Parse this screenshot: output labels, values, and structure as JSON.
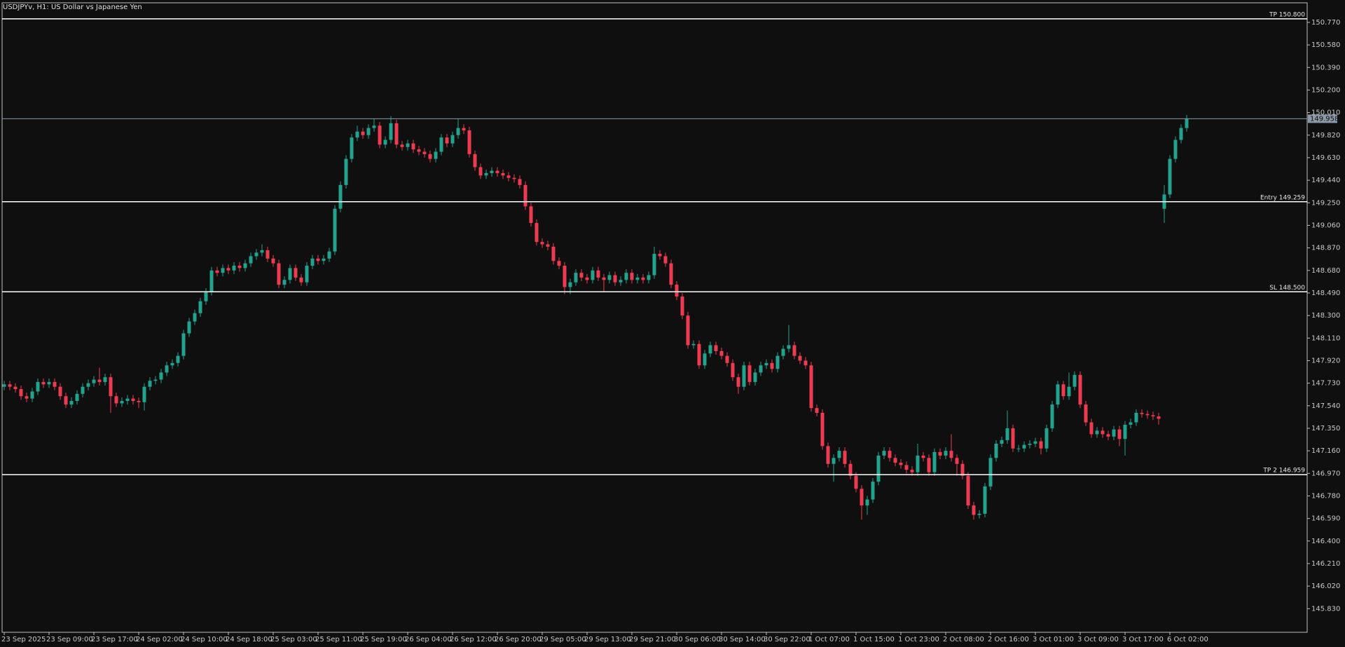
{
  "chart_data": {
    "type": "candlestick",
    "title": "USDJPYv, H1:  US Dollar vs Japanese Yen",
    "up_color": "#22a38e",
    "down_color": "#ee3b52",
    "level_color": "#ffffff",
    "bid_color": "#8c99a8",
    "ylim": [
      145.631,
      150.935
    ],
    "yticks": [
      {
        "value": 150.77,
        "label": "150.770"
      },
      {
        "value": 150.58,
        "label": "150.580"
      },
      {
        "value": 150.39,
        "label": "150.390"
      },
      {
        "value": 150.2,
        "label": "150.200"
      },
      {
        "value": 150.01,
        "label": "150.010"
      },
      {
        "value": 149.82,
        "label": "149.820"
      },
      {
        "value": 149.63,
        "label": "149.630"
      },
      {
        "value": 149.44,
        "label": "149.440"
      },
      {
        "value": 149.25,
        "label": "149.250"
      },
      {
        "value": 149.06,
        "label": "149.060"
      },
      {
        "value": 148.87,
        "label": "148.870"
      },
      {
        "value": 148.68,
        "label": "148.680"
      },
      {
        "value": 148.49,
        "label": "148.490"
      },
      {
        "value": 148.3,
        "label": "148.300"
      },
      {
        "value": 148.11,
        "label": "148.110"
      },
      {
        "value": 147.92,
        "label": "147.920"
      },
      {
        "value": 147.73,
        "label": "147.730"
      },
      {
        "value": 147.54,
        "label": "147.540"
      },
      {
        "value": 147.35,
        "label": "147.350"
      },
      {
        "value": 147.16,
        "label": "147.160"
      },
      {
        "value": 146.97,
        "label": "146.970"
      },
      {
        "value": 146.78,
        "label": "146.780"
      },
      {
        "value": 146.59,
        "label": "146.590"
      },
      {
        "value": 146.4,
        "label": "146.400"
      },
      {
        "value": 146.21,
        "label": "146.210"
      },
      {
        "value": 146.02,
        "label": "146.020"
      },
      {
        "value": 145.83,
        "label": "145.830"
      }
    ],
    "levels": [
      {
        "label": "TP 150.800",
        "value": 150.8
      },
      {
        "label": "Entry 149.259",
        "value": 149.259
      },
      {
        "label": "SL 148.500",
        "value": 148.5
      },
      {
        "label": "TP 2 146.959",
        "value": 146.959
      }
    ],
    "bid": 149.958,
    "categories": [
      "23 Sep 2025",
      null,
      null,
      null,
      null,
      null,
      null,
      null,
      "23 Sep 09:00",
      null,
      null,
      null,
      null,
      null,
      null,
      null,
      "23 Sep 17:00",
      null,
      null,
      null,
      null,
      null,
      null,
      null,
      "24 Sep 02:00",
      null,
      null,
      null,
      null,
      null,
      null,
      null,
      "24 Sep 10:00",
      null,
      null,
      null,
      null,
      null,
      null,
      null,
      "24 Sep 18:00",
      null,
      null,
      null,
      null,
      null,
      null,
      null,
      "25 Sep 03:00",
      null,
      null,
      null,
      null,
      null,
      null,
      null,
      "25 Sep 11:00",
      null,
      null,
      null,
      null,
      null,
      null,
      null,
      "25 Sep 19:00",
      null,
      null,
      null,
      null,
      null,
      null,
      null,
      "26 Sep 04:00",
      null,
      null,
      null,
      null,
      null,
      null,
      null,
      "26 Sep 12:00",
      null,
      null,
      null,
      null,
      null,
      null,
      null,
      "26 Sep 20:00",
      null,
      null,
      null,
      null,
      null,
      null,
      null,
      "29 Sep 05:00",
      null,
      null,
      null,
      null,
      null,
      null,
      null,
      "29 Sep 13:00",
      null,
      null,
      null,
      null,
      null,
      null,
      null,
      "29 Sep 21:00",
      null,
      null,
      null,
      null,
      null,
      null,
      null,
      "30 Sep 06:00",
      null,
      null,
      null,
      null,
      null,
      null,
      null,
      "30 Sep 14:00",
      null,
      null,
      null,
      null,
      null,
      null,
      null,
      "30 Sep 22:00",
      null,
      null,
      null,
      null,
      null,
      null,
      null,
      "1 Oct 07:00",
      null,
      null,
      null,
      null,
      null,
      null,
      null,
      "1 Oct 15:00",
      null,
      null,
      null,
      null,
      null,
      null,
      null,
      "1 Oct 23:00",
      null,
      null,
      null,
      null,
      null,
      null,
      null,
      "2 Oct 08:00",
      null,
      null,
      null,
      null,
      null,
      null,
      null,
      "2 Oct 16:00",
      null,
      null,
      null,
      null,
      null,
      null,
      null,
      "3 Oct 01:00",
      null,
      null,
      null,
      null,
      null,
      null,
      null,
      "3 Oct 09:00",
      null,
      null,
      null,
      null,
      null,
      null,
      null,
      "3 Oct 17:00",
      null,
      null,
      null,
      null,
      null,
      null,
      null,
      "6 Oct 02:00",
      null,
      null,
      null
    ],
    "open": [
      147.7,
      147.72,
      147.7,
      147.68,
      147.62,
      147.6,
      147.66,
      147.74,
      147.72,
      147.74,
      147.7,
      147.62,
      147.55,
      147.58,
      147.64,
      147.7,
      147.73,
      147.76,
      147.74,
      147.78,
      147.62,
      147.56,
      147.58,
      147.6,
      147.58,
      147.57,
      147.7,
      147.75,
      147.76,
      147.82,
      147.88,
      147.9,
      147.96,
      148.15,
      148.25,
      148.32,
      148.42,
      148.5,
      148.68,
      148.66,
      148.7,
      148.68,
      148.72,
      148.7,
      148.74,
      148.8,
      148.83,
      148.85,
      148.78,
      148.74,
      148.56,
      148.6,
      148.7,
      148.62,
      148.58,
      148.72,
      148.78,
      148.76,
      148.78,
      148.84,
      149.2,
      149.4,
      149.62,
      149.8,
      149.85,
      149.82,
      149.88,
      149.9,
      149.74,
      149.78,
      149.92,
      149.74,
      149.72,
      149.75,
      149.7,
      149.68,
      149.66,
      149.62,
      149.68,
      149.8,
      149.75,
      149.82,
      149.88,
      149.86,
      149.66,
      149.55,
      149.48,
      149.5,
      149.52,
      149.5,
      149.48,
      149.46,
      149.45,
      149.4,
      149.22,
      149.08,
      148.92,
      148.9,
      148.88,
      148.76,
      148.72,
      148.54,
      148.58,
      148.66,
      148.62,
      148.6,
      148.68,
      148.62,
      148.6,
      148.64,
      148.58,
      148.6,
      148.66,
      148.6,
      148.62,
      148.6,
      148.64,
      148.82,
      148.8,
      148.74,
      148.56,
      148.46,
      148.3,
      148.05,
      148.06,
      147.88,
      147.98,
      148.05,
      148.0,
      147.96,
      147.9,
      147.78,
      147.7,
      147.88,
      147.74,
      147.82,
      147.88,
      147.9,
      147.85,
      147.96,
      148.02,
      148.05,
      147.96,
      147.92,
      147.88,
      147.52,
      147.48,
      147.2,
      147.05,
      147.1,
      147.16,
      147.05,
      146.95,
      146.84,
      146.7,
      146.75,
      146.9,
      147.12,
      147.16,
      147.1,
      147.06,
      147.04,
      147.0,
      146.98,
      147.12,
      147.1,
      146.98,
      147.15,
      147.12,
      147.16,
      147.1,
      147.05,
      146.95,
      146.7,
      146.62,
      146.63,
      146.86,
      147.1,
      147.22,
      147.25,
      147.35,
      147.18,
      147.18,
      147.21,
      147.22,
      147.24,
      147.18,
      147.35,
      147.55,
      147.72,
      147.62,
      147.7,
      147.8,
      147.55,
      147.4,
      147.3,
      147.33,
      147.3,
      147.28,
      147.34,
      147.26,
      147.38,
      147.4,
      147.48,
      147.47,
      147.46,
      147.45,
      149.2,
      149.32,
      149.62,
      149.78,
      149.88
    ],
    "high": [
      147.75,
      147.75,
      147.73,
      147.71,
      147.65,
      147.69,
      147.77,
      147.77,
      147.77,
      147.77,
      147.73,
      147.65,
      147.61,
      147.67,
      147.73,
      147.76,
      147.79,
      147.86,
      147.81,
      147.81,
      147.65,
      147.61,
      147.63,
      147.63,
      147.61,
      147.73,
      147.78,
      147.79,
      147.85,
      147.91,
      147.93,
      147.99,
      148.18,
      148.28,
      148.35,
      148.45,
      148.53,
      148.71,
      148.71,
      148.73,
      148.73,
      148.75,
      148.75,
      148.77,
      148.83,
      148.86,
      148.9,
      148.88,
      148.81,
      148.77,
      148.63,
      148.73,
      148.73,
      148.65,
      148.75,
      148.81,
      148.81,
      148.81,
      148.87,
      149.23,
      149.43,
      149.65,
      149.83,
      149.9,
      149.88,
      149.91,
      149.96,
      149.93,
      149.81,
      149.98,
      149.95,
      149.77,
      149.78,
      149.78,
      149.73,
      149.71,
      149.69,
      149.71,
      149.83,
      149.83,
      149.85,
      149.96,
      149.91,
      149.89,
      149.69,
      149.58,
      149.53,
      149.55,
      149.55,
      149.53,
      149.51,
      149.49,
      149.48,
      149.43,
      149.25,
      149.11,
      148.95,
      148.93,
      148.91,
      148.79,
      148.75,
      148.61,
      148.69,
      148.69,
      148.65,
      148.71,
      148.71,
      148.65,
      148.67,
      148.67,
      148.63,
      148.69,
      148.69,
      148.65,
      148.65,
      148.67,
      148.88,
      148.85,
      148.83,
      148.77,
      148.59,
      148.49,
      148.33,
      148.09,
      148.09,
      148.01,
      148.08,
      148.08,
      148.03,
      147.99,
      147.93,
      147.81,
      147.91,
      147.91,
      147.85,
      147.91,
      147.93,
      147.93,
      147.99,
      148.05,
      148.22,
      148.08,
      147.99,
      147.95,
      147.91,
      147.55,
      147.51,
      147.23,
      147.13,
      147.19,
      147.19,
      147.08,
      146.98,
      146.87,
      146.78,
      146.93,
      147.15,
      147.19,
      147.19,
      147.13,
      147.09,
      147.07,
      147.03,
      147.22,
      147.15,
      147.13,
      147.18,
      147.18,
      147.19,
      147.3,
      147.13,
      147.08,
      146.98,
      146.73,
      146.66,
      146.89,
      147.13,
      147.25,
      147.28,
      147.5,
      147.38,
      147.21,
      147.24,
      147.25,
      147.27,
      147.27,
      147.38,
      147.58,
      147.75,
      147.75,
      147.82,
      147.83,
      147.83,
      147.58,
      147.43,
      147.36,
      147.36,
      147.33,
      147.37,
      147.37,
      147.41,
      147.43,
      147.51,
      147.51,
      147.5,
      147.49,
      147.48,
      149.4,
      149.65,
      149.81,
      149.91,
      149.99
    ],
    "low": [
      147.67,
      147.67,
      147.65,
      147.59,
      147.57,
      147.57,
      147.63,
      147.69,
      147.69,
      147.67,
      147.59,
      147.52,
      147.52,
      147.55,
      147.61,
      147.67,
      147.7,
      147.71,
      147.71,
      147.48,
      147.53,
      147.53,
      147.55,
      147.55,
      147.52,
      147.5,
      147.67,
      147.72,
      147.73,
      147.79,
      147.85,
      147.87,
      147.93,
      148.12,
      148.22,
      148.29,
      148.39,
      148.47,
      148.63,
      148.63,
      148.65,
      148.65,
      148.67,
      148.67,
      148.71,
      148.77,
      148.8,
      148.75,
      148.71,
      148.53,
      148.53,
      148.57,
      148.59,
      148.55,
      148.55,
      148.69,
      148.73,
      148.73,
      148.75,
      148.81,
      149.17,
      149.37,
      149.59,
      149.77,
      149.79,
      149.79,
      149.85,
      149.71,
      149.71,
      149.75,
      149.71,
      149.69,
      149.69,
      149.67,
      149.65,
      149.63,
      149.59,
      149.59,
      149.65,
      149.72,
      149.72,
      149.79,
      149.83,
      149.63,
      149.52,
      149.45,
      149.45,
      149.47,
      149.47,
      149.45,
      149.43,
      149.42,
      149.37,
      149.19,
      149.05,
      148.89,
      148.87,
      148.85,
      148.73,
      148.69,
      148.48,
      148.48,
      148.55,
      148.59,
      148.57,
      148.57,
      148.59,
      148.5,
      148.57,
      148.55,
      148.55,
      148.57,
      148.57,
      148.57,
      148.57,
      148.57,
      148.61,
      148.77,
      148.71,
      148.53,
      148.43,
      148.27,
      148.02,
      148.02,
      147.85,
      147.85,
      147.95,
      147.97,
      147.93,
      147.87,
      147.75,
      147.64,
      147.67,
      147.71,
      147.71,
      147.79,
      147.85,
      147.82,
      147.82,
      147.93,
      147.99,
      147.93,
      147.89,
      147.85,
      147.49,
      147.45,
      147.17,
      147.02,
      146.9,
      147.07,
      147.02,
      146.92,
      146.81,
      146.58,
      146.62,
      146.72,
      146.87,
      147.09,
      147.07,
      147.03,
      147.01,
      146.97,
      146.95,
      146.95,
      147.07,
      146.95,
      146.95,
      147.09,
      147.09,
      147.07,
      146.95,
      146.92,
      146.67,
      146.58,
      146.59,
      146.6,
      146.83,
      147.07,
      147.19,
      147.22,
      147.15,
      147.15,
      147.15,
      147.18,
      147.19,
      147.13,
      147.15,
      147.32,
      147.52,
      147.59,
      147.59,
      147.67,
      147.52,
      147.37,
      147.27,
      147.27,
      147.27,
      147.25,
      147.25,
      147.2,
      147.12,
      147.35,
      147.37,
      147.44,
      147.43,
      147.42,
      147.38,
      149.08,
      149.29,
      149.59,
      149.75,
      149.85
    ],
    "close": [
      147.72,
      147.7,
      147.68,
      147.62,
      147.6,
      147.66,
      147.74,
      147.72,
      147.74,
      147.7,
      147.62,
      147.55,
      147.58,
      147.64,
      147.7,
      147.73,
      147.76,
      147.74,
      147.78,
      147.62,
      147.56,
      147.58,
      147.6,
      147.58,
      147.57,
      147.7,
      147.75,
      147.76,
      147.82,
      147.88,
      147.9,
      147.96,
      148.15,
      148.25,
      148.32,
      148.42,
      148.5,
      148.68,
      148.66,
      148.7,
      148.68,
      148.72,
      148.7,
      148.74,
      148.8,
      148.83,
      148.85,
      148.78,
      148.74,
      148.56,
      148.6,
      148.7,
      148.62,
      148.58,
      148.72,
      148.78,
      148.76,
      148.78,
      148.84,
      149.2,
      149.4,
      149.62,
      149.8,
      149.85,
      149.82,
      149.88,
      149.9,
      149.74,
      149.78,
      149.92,
      149.74,
      149.72,
      149.75,
      149.7,
      149.68,
      149.66,
      149.62,
      149.68,
      149.8,
      149.75,
      149.82,
      149.88,
      149.86,
      149.66,
      149.55,
      149.48,
      149.5,
      149.52,
      149.5,
      149.48,
      149.46,
      149.45,
      149.4,
      149.22,
      149.08,
      148.92,
      148.9,
      148.88,
      148.76,
      148.72,
      148.54,
      148.58,
      148.66,
      148.62,
      148.6,
      148.68,
      148.62,
      148.6,
      148.64,
      148.58,
      148.6,
      148.66,
      148.6,
      148.62,
      148.6,
      148.64,
      148.82,
      148.8,
      148.74,
      148.56,
      148.46,
      148.3,
      148.05,
      148.06,
      147.88,
      147.98,
      148.05,
      148.0,
      147.96,
      147.9,
      147.78,
      147.7,
      147.88,
      147.74,
      147.82,
      147.88,
      147.9,
      147.85,
      147.96,
      148.02,
      148.05,
      147.96,
      147.92,
      147.88,
      147.52,
      147.48,
      147.2,
      147.05,
      147.1,
      147.16,
      147.05,
      146.95,
      146.84,
      146.7,
      146.75,
      146.9,
      147.12,
      147.16,
      147.1,
      147.06,
      147.04,
      147.0,
      146.98,
      147.12,
      147.1,
      146.98,
      147.15,
      147.12,
      147.16,
      147.1,
      147.05,
      146.95,
      146.7,
      146.62,
      146.63,
      146.86,
      147.1,
      147.22,
      147.25,
      147.35,
      147.18,
      147.18,
      147.21,
      147.22,
      147.24,
      147.18,
      147.35,
      147.55,
      147.72,
      147.62,
      147.7,
      147.8,
      147.55,
      147.4,
      147.3,
      147.33,
      147.3,
      147.28,
      147.34,
      147.26,
      147.38,
      147.4,
      147.48,
      147.47,
      147.46,
      147.45,
      147.43,
      149.32,
      149.62,
      149.78,
      149.88,
      149.958
    ]
  }
}
